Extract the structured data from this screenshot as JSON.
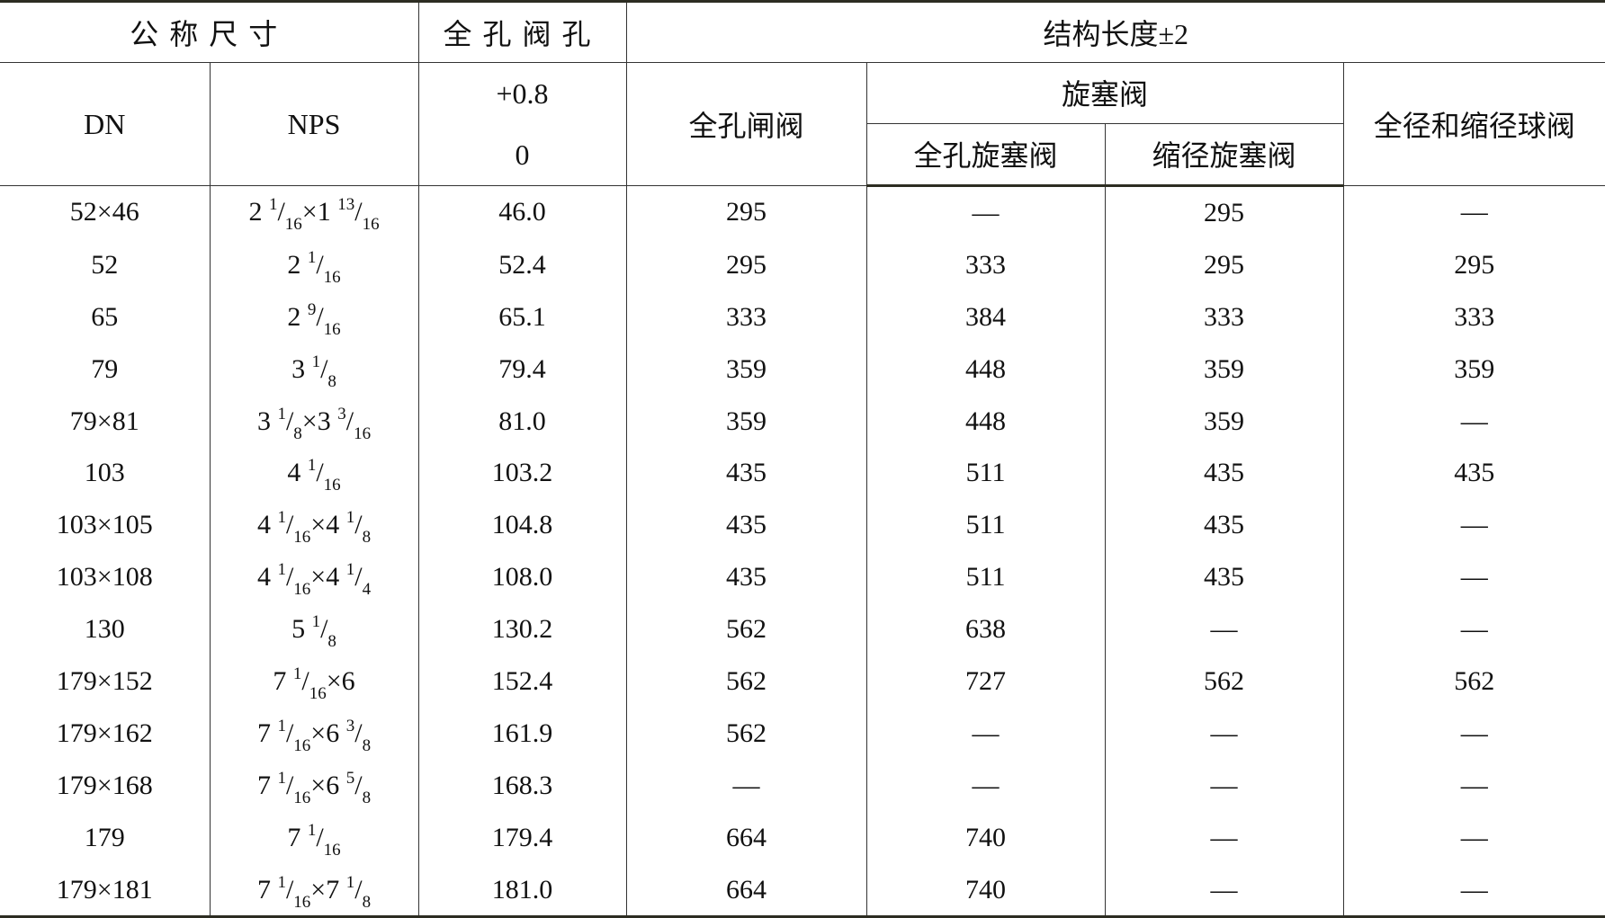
{
  "header": {
    "nominal_size": "公称尺寸",
    "full_bore": "全孔阀孔",
    "face_to_face": "结构长度±2",
    "dn": "DN",
    "nps": "NPS",
    "tol_plus": "+0.8",
    "tol_minus": "0",
    "gate": "全孔闸阀",
    "plug": "旋塞阀",
    "plug_full": "全孔旋塞阀",
    "plug_reduced": "缩径旋塞阀",
    "ball": "全径和缩径球阀"
  },
  "rows": [
    {
      "dn": "52×46",
      "nps": [
        {
          "t": "2 "
        },
        {
          "sup": "1"
        },
        {
          "t": "/"
        },
        {
          "sub": "16"
        },
        {
          "t": "×1 "
        },
        {
          "sup": "13"
        },
        {
          "t": "/"
        },
        {
          "sub": "16"
        }
      ],
      "bore": "46.0",
      "gate": "295",
      "plug_full": "—",
      "plug_reduced": "295",
      "ball": "—"
    },
    {
      "dn": "52",
      "nps": [
        {
          "t": "2 "
        },
        {
          "sup": "1"
        },
        {
          "t": "/"
        },
        {
          "sub": "16"
        }
      ],
      "bore": "52.4",
      "gate": "295",
      "plug_full": "333",
      "plug_reduced": "295",
      "ball": "295"
    },
    {
      "dn": "65",
      "nps": [
        {
          "t": "2 "
        },
        {
          "sup": "9"
        },
        {
          "t": "/"
        },
        {
          "sub": "16"
        }
      ],
      "bore": "65.1",
      "gate": "333",
      "plug_full": "384",
      "plug_reduced": "333",
      "ball": "333"
    },
    {
      "dn": "79",
      "nps": [
        {
          "t": "3 "
        },
        {
          "sup": "1"
        },
        {
          "t": "/"
        },
        {
          "sub": "8"
        }
      ],
      "bore": "79.4",
      "gate": "359",
      "plug_full": "448",
      "plug_reduced": "359",
      "ball": "359"
    },
    {
      "dn": "79×81",
      "nps": [
        {
          "t": "3 "
        },
        {
          "sup": "1"
        },
        {
          "t": "/"
        },
        {
          "sub": "8"
        },
        {
          "t": "×3 "
        },
        {
          "sup": "3"
        },
        {
          "t": "/"
        },
        {
          "sub": "16"
        }
      ],
      "bore": "81.0",
      "gate": "359",
      "plug_full": "448",
      "plug_reduced": "359",
      "ball": "—"
    },
    {
      "dn": "103",
      "nps": [
        {
          "t": "4 "
        },
        {
          "sup": "1"
        },
        {
          "t": "/"
        },
        {
          "sub": "16"
        }
      ],
      "bore": "103.2",
      "gate": "435",
      "plug_full": "511",
      "plug_reduced": "435",
      "ball": "435"
    },
    {
      "dn": "103×105",
      "nps": [
        {
          "t": "4 "
        },
        {
          "sup": "1"
        },
        {
          "t": "/"
        },
        {
          "sub": "16"
        },
        {
          "t": "×4 "
        },
        {
          "sup": "1"
        },
        {
          "t": "/"
        },
        {
          "sub": "8"
        }
      ],
      "bore": "104.8",
      "gate": "435",
      "plug_full": "511",
      "plug_reduced": "435",
      "ball": "—"
    },
    {
      "dn": "103×108",
      "nps": [
        {
          "t": "4 "
        },
        {
          "sup": "1"
        },
        {
          "t": "/"
        },
        {
          "sub": "16"
        },
        {
          "t": "×4 "
        },
        {
          "sup": "1"
        },
        {
          "t": "/"
        },
        {
          "sub": "4"
        }
      ],
      "bore": "108.0",
      "gate": "435",
      "plug_full": "511",
      "plug_reduced": "435",
      "ball": "—"
    },
    {
      "dn": "130",
      "nps": [
        {
          "t": "5 "
        },
        {
          "sup": "1"
        },
        {
          "t": "/"
        },
        {
          "sub": "8"
        }
      ],
      "bore": "130.2",
      "gate": "562",
      "plug_full": "638",
      "plug_reduced": "—",
      "ball": "—"
    },
    {
      "dn": "179×152",
      "nps": [
        {
          "t": "7 "
        },
        {
          "sup": "1"
        },
        {
          "t": "/"
        },
        {
          "sub": "16"
        },
        {
          "t": "×6"
        }
      ],
      "bore": "152.4",
      "gate": "562",
      "plug_full": "727",
      "plug_reduced": "562",
      "ball": "562"
    },
    {
      "dn": "179×162",
      "nps": [
        {
          "t": "7 "
        },
        {
          "sup": "1"
        },
        {
          "t": "/"
        },
        {
          "sub": "16"
        },
        {
          "t": "×6 "
        },
        {
          "sup": "3"
        },
        {
          "t": "/"
        },
        {
          "sub": "8"
        }
      ],
      "bore": "161.9",
      "gate": "562",
      "plug_full": "—",
      "plug_reduced": "—",
      "ball": "—"
    },
    {
      "dn": "179×168",
      "nps": [
        {
          "t": "7 "
        },
        {
          "sup": "1"
        },
        {
          "t": "/"
        },
        {
          "sub": "16"
        },
        {
          "t": "×6 "
        },
        {
          "sup": "5"
        },
        {
          "t": "/"
        },
        {
          "sub": "8"
        }
      ],
      "bore": "168.3",
      "gate": "—",
      "plug_full": "—",
      "plug_reduced": "—",
      "ball": "—"
    },
    {
      "dn": "179",
      "nps": [
        {
          "t": "7 "
        },
        {
          "sup": "1"
        },
        {
          "t": "/"
        },
        {
          "sub": "16"
        }
      ],
      "bore": "179.4",
      "gate": "664",
      "plug_full": "740",
      "plug_reduced": "—",
      "ball": "—"
    },
    {
      "dn": "179×181",
      "nps": [
        {
          "t": "7 "
        },
        {
          "sup": "1"
        },
        {
          "t": "/"
        },
        {
          "sub": "16"
        },
        {
          "t": "×7 "
        },
        {
          "sup": "1"
        },
        {
          "t": "/"
        },
        {
          "sub": "8"
        }
      ],
      "bore": "181.0",
      "gate": "664",
      "plug_full": "740",
      "plug_reduced": "—",
      "ball": "—"
    }
  ]
}
